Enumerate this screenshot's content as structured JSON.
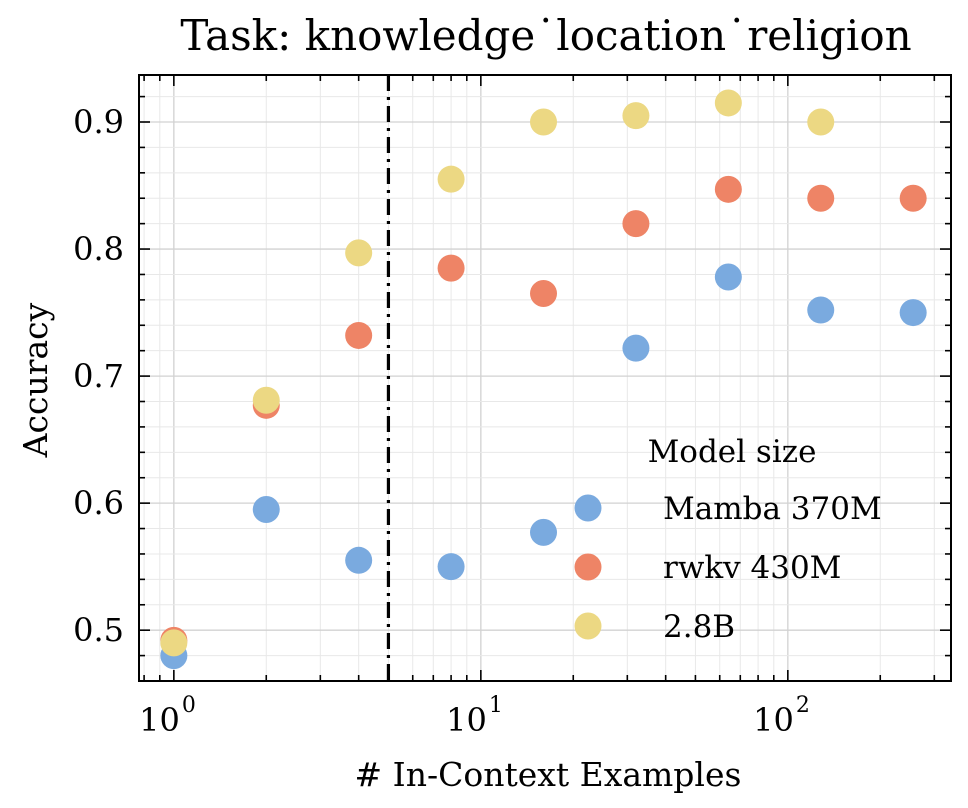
{
  "chart_data": {
    "type": "scatter",
    "title": "Task: knowledge˙location˙religion",
    "xlabel": "# In-Context Examples",
    "ylabel": "Accuracy",
    "x_scale": "log",
    "xlim": [
      0.77,
      340
    ],
    "ylim": [
      0.46,
      0.937
    ],
    "x_ticks": [
      {
        "value": 1,
        "base": "10",
        "exp": "0"
      },
      {
        "value": 10,
        "base": "10",
        "exp": "1"
      },
      {
        "value": 100,
        "base": "10",
        "exp": "2"
      }
    ],
    "y_ticks": [
      {
        "value": 0.5,
        "label": "0.5"
      },
      {
        "value": 0.6,
        "label": "0.6"
      },
      {
        "value": 0.7,
        "label": "0.7"
      },
      {
        "value": 0.8,
        "label": "0.8"
      },
      {
        "value": 0.9,
        "label": "0.9"
      }
    ],
    "grid": true,
    "vertical_line": {
      "x": 5,
      "style": "dash-dot",
      "color": "#000000"
    },
    "legend": {
      "title": "Model size",
      "placement": "lower-right"
    },
    "series": [
      {
        "name": "Mamba 370M",
        "color": "#7aaadf",
        "points": [
          [
            1,
            0.48
          ],
          [
            2,
            0.595
          ],
          [
            4,
            0.555
          ],
          [
            8,
            0.55
          ],
          [
            16,
            0.577
          ],
          [
            32,
            0.722
          ],
          [
            64,
            0.778
          ],
          [
            128,
            0.752
          ],
          [
            256,
            0.75
          ]
        ]
      },
      {
        "name": "rwkv 430M",
        "color": "#ee8466",
        "points": [
          [
            1,
            0.492
          ],
          [
            2,
            0.677
          ],
          [
            4,
            0.732
          ],
          [
            8,
            0.785
          ],
          [
            16,
            0.765
          ],
          [
            32,
            0.82
          ],
          [
            64,
            0.847
          ],
          [
            128,
            0.84
          ],
          [
            256,
            0.84
          ]
        ]
      },
      {
        "name": "2.8B",
        "color": "#ecd883",
        "points": [
          [
            1,
            0.49
          ],
          [
            2,
            0.681
          ],
          [
            4,
            0.797
          ],
          [
            8,
            0.855
          ],
          [
            16,
            0.9
          ],
          [
            32,
            0.905
          ],
          [
            64,
            0.915
          ],
          [
            128,
            0.9
          ]
        ]
      }
    ]
  }
}
